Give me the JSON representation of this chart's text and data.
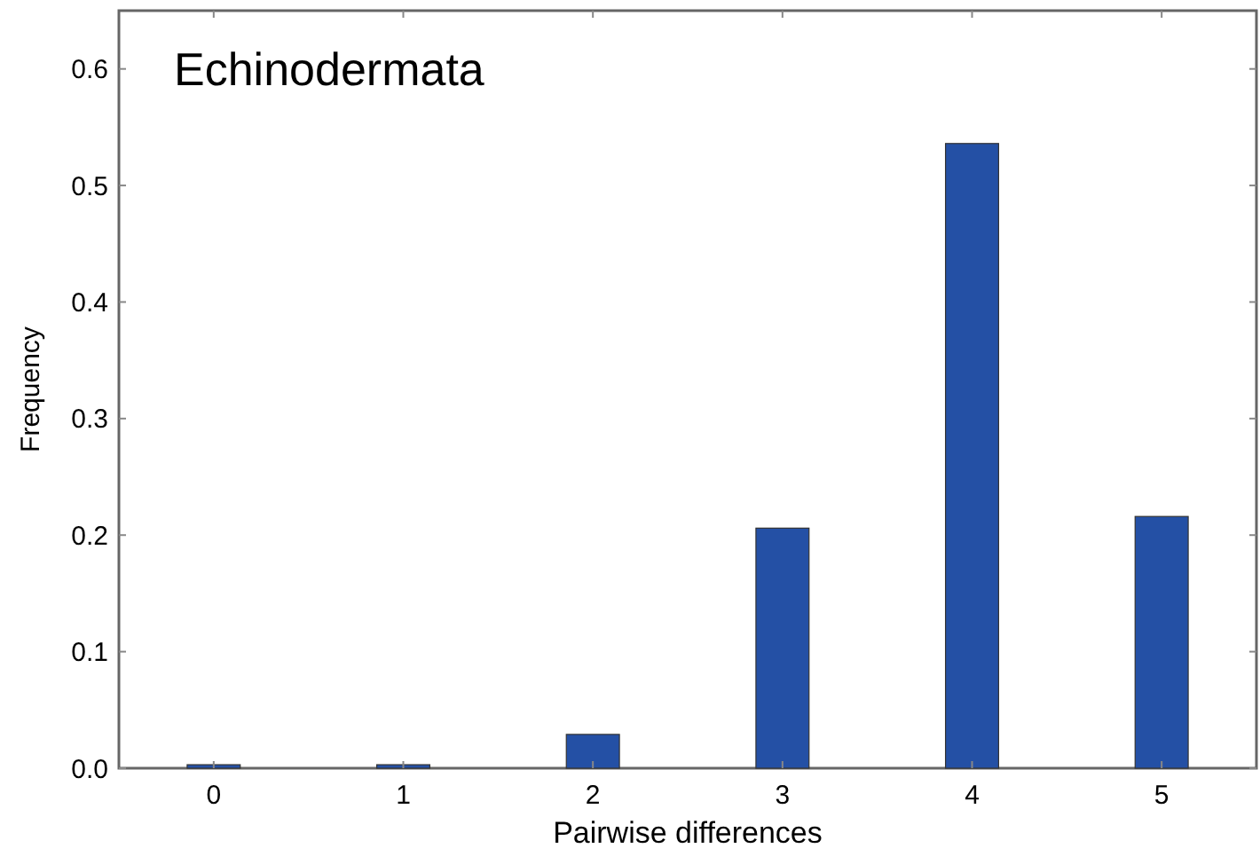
{
  "chart_data": {
    "type": "bar",
    "title": "Echinodermata",
    "xlabel": "Pairwise differences",
    "ylabel": "Frequency",
    "categories": [
      "0",
      "1",
      "2",
      "3",
      "4",
      "5"
    ],
    "values": [
      0.003,
      0.003,
      0.029,
      0.206,
      0.536,
      0.216
    ],
    "color": "#2450a5",
    "ylim": [
      0,
      0.65
    ],
    "yticks": [
      {
        "value": 0,
        "label": "0.0"
      },
      0.1,
      0.2,
      0.3,
      0.4,
      0.5,
      0.6
    ],
    "grid": false
  }
}
